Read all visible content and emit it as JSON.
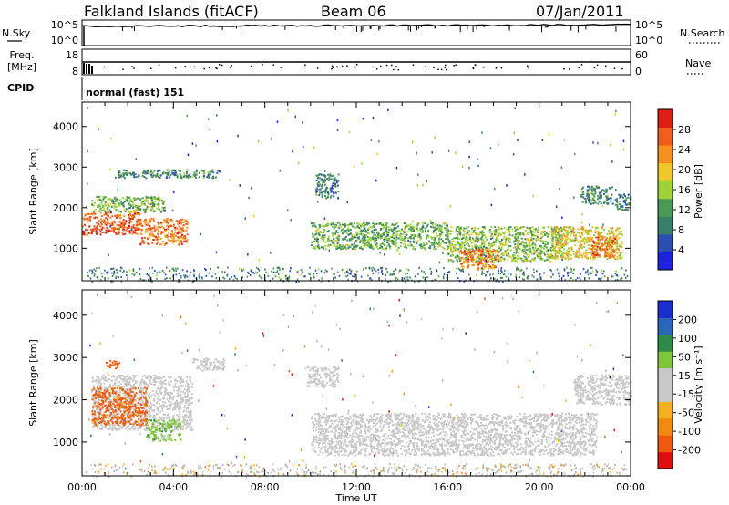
{
  "header": {
    "station": "Falkland Islands (fitACF)",
    "beam": "Beam 06",
    "date": "07/Jan/2011"
  },
  "top_panels": {
    "nsky_label": "N.Sky",
    "nsearch_label": "N.Search",
    "nsky_ticks": [
      "10^5",
      "10^0"
    ],
    "nsearch_ticks": [
      "10^5",
      "10^0"
    ],
    "freq_label_1": "Freq.",
    "freq_label_2": "[MHz]",
    "freq_ticks": [
      "18",
      "8"
    ],
    "nave_label": "Nave",
    "nave_ticks": [
      "60",
      "0"
    ],
    "cpid_label": "CPID",
    "cpid_value": "normal (fast) 151"
  },
  "colors": {
    "power_scale": [
      "#1f22dd",
      "#2b4fb0",
      "#3a7f6a",
      "#4a9a55",
      "#9ed23a",
      "#f0c62a",
      "#f5911e",
      "#ee5f1c",
      "#e01f14"
    ],
    "velocity_scale": [
      "#e01010",
      "#f05a10",
      "#f08a10",
      "#f5b020",
      "#c8c8c8",
      "#c8c8c8",
      "#7ec63a",
      "#2e8a4a",
      "#2c66b8",
      "#1a2fcc"
    ],
    "ground_scatter": "#b0b0b0"
  },
  "chart_data": [
    {
      "type": "heatmap",
      "name": "power",
      "xlabel": "",
      "ylabel": "Slant Range [km]",
      "xlim": [
        0,
        24
      ],
      "ylim": [
        200,
        4600
      ],
      "yticks": [
        1000,
        2000,
        3000,
        4000
      ],
      "colorbar": {
        "label": "Power [dB]",
        "ticks": [
          4,
          8,
          12,
          16,
          20,
          24,
          28
        ],
        "range": [
          0,
          32
        ]
      },
      "regions": [
        {
          "t": [
            0.0,
            2.5
          ],
          "r": [
            1350,
            1900
          ],
          "level": 27
        },
        {
          "t": [
            2.5,
            4.6
          ],
          "r": [
            1100,
            1750
          ],
          "level": 25
        },
        {
          "t": [
            0.4,
            3.6
          ],
          "r": [
            1900,
            2300
          ],
          "level": 14
        },
        {
          "t": [
            1.4,
            6.0
          ],
          "r": [
            2750,
            2950
          ],
          "level": 10
        },
        {
          "t": [
            10.2,
            11.2
          ],
          "r": [
            2250,
            2850
          ],
          "level": 9
        },
        {
          "t": [
            10.0,
            16.0
          ],
          "r": [
            1000,
            1650
          ],
          "level": 13
        },
        {
          "t": [
            16.0,
            21.0
          ],
          "r": [
            700,
            1550
          ],
          "level": 15
        },
        {
          "t": [
            16.5,
            18.2
          ],
          "r": [
            500,
            1000
          ],
          "level": 25
        },
        {
          "t": [
            20.5,
            23.6
          ],
          "r": [
            750,
            1550
          ],
          "level": 19
        },
        {
          "t": [
            22.2,
            23.3
          ],
          "r": [
            800,
            1300
          ],
          "level": 25
        },
        {
          "t": [
            21.8,
            23.2
          ],
          "r": [
            2100,
            2550
          ],
          "level": 10
        },
        {
          "t": [
            23.3,
            24.0
          ],
          "r": [
            1950,
            2350
          ],
          "level": 8
        }
      ],
      "ground_band": [
        200,
        550
      ]
    },
    {
      "type": "heatmap",
      "name": "velocity",
      "xlabel": "Time UT",
      "ylabel": "Slant Range [km]",
      "xlim": [
        0,
        24
      ],
      "ylim": [
        200,
        4600
      ],
      "yticks": [
        1000,
        2000,
        3000,
        4000
      ],
      "xticks": [
        "00:00",
        "04:00",
        "08:00",
        "12:00",
        "16:00",
        "20:00",
        "00:00"
      ],
      "colorbar": {
        "label": "Velocity [m s⁻¹]",
        "ticks": [
          200,
          100,
          50,
          15,
          -15,
          -50,
          -100,
          -200
        ]
      },
      "regions": [
        {
          "t": [
            0.4,
            4.8
          ],
          "r": [
            1300,
            2600
          ],
          "level": 0
        },
        {
          "t": [
            4.8,
            6.2
          ],
          "r": [
            2700,
            3000
          ],
          "level": 0
        },
        {
          "t": [
            0.4,
            2.8
          ],
          "r": [
            1400,
            2300
          ],
          "level": -60
        },
        {
          "t": [
            2.8,
            4.3
          ],
          "r": [
            1050,
            1550
          ],
          "level": 40
        },
        {
          "t": [
            1.0,
            1.6
          ],
          "r": [
            2750,
            2950
          ],
          "level": -80
        },
        {
          "t": [
            10.0,
            22.5
          ],
          "r": [
            700,
            1700
          ],
          "level": 0
        },
        {
          "t": [
            9.8,
            11.2
          ],
          "r": [
            2300,
            2800
          ],
          "level": 0
        },
        {
          "t": [
            21.5,
            24.0
          ],
          "r": [
            1900,
            2600
          ],
          "level": 0
        }
      ],
      "ground_band": [
        200,
        500
      ]
    }
  ]
}
